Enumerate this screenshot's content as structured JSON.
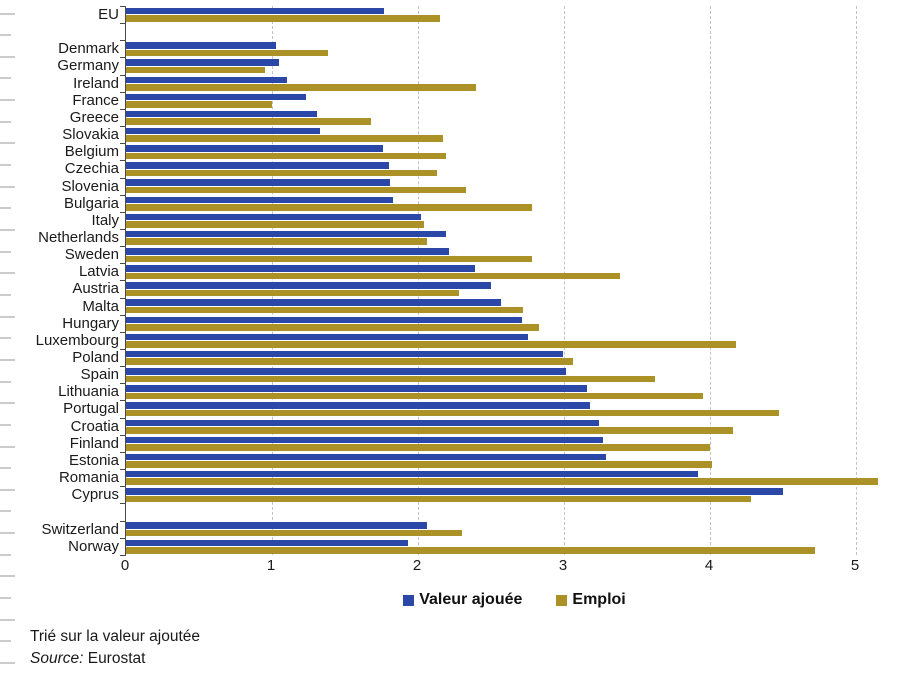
{
  "chart_data": {
    "type": "bar",
    "orientation": "horizontal",
    "title": "",
    "xlabel": "",
    "ylabel": "",
    "xlim": [
      0,
      5
    ],
    "x_ticks": [
      "0",
      "1",
      "2",
      "3",
      "4",
      "5"
    ],
    "grid": "vertical-dashed",
    "legend_position": "bottom-center",
    "series_names": [
      "Valeur ajouée",
      "Emploi"
    ],
    "colors": {
      "valeur_ajoutee": "#2B47A8",
      "emploi": "#AC9127"
    },
    "rows": [
      {
        "label": "EU",
        "valeur_ajoutee": 1.77,
        "emploi": 2.15
      },
      {
        "spacer": true
      },
      {
        "label": "Denmark",
        "valeur_ajoutee": 1.03,
        "emploi": 1.38
      },
      {
        "label": "Germany",
        "valeur_ajoutee": 1.05,
        "emploi": 0.95
      },
      {
        "label": "Ireland",
        "valeur_ajoutee": 1.1,
        "emploi": 2.4
      },
      {
        "label": "France",
        "valeur_ajoutee": 1.23,
        "emploi": 1.0
      },
      {
        "label": "Greece",
        "valeur_ajoutee": 1.31,
        "emploi": 1.68
      },
      {
        "label": "Slovakia",
        "valeur_ajoutee": 1.33,
        "emploi": 2.17
      },
      {
        "label": "Belgium",
        "valeur_ajoutee": 1.76,
        "emploi": 2.19
      },
      {
        "label": "Czechia",
        "valeur_ajoutee": 1.8,
        "emploi": 2.13
      },
      {
        "label": "Slovenia",
        "valeur_ajoutee": 1.81,
        "emploi": 2.33
      },
      {
        "label": "Bulgaria",
        "valeur_ajoutee": 1.83,
        "emploi": 2.78
      },
      {
        "label": "Italy",
        "valeur_ajoutee": 2.02,
        "emploi": 2.04
      },
      {
        "label": "Netherlands",
        "valeur_ajoutee": 2.19,
        "emploi": 2.06
      },
      {
        "label": "Sweden",
        "valeur_ajoutee": 2.21,
        "emploi": 2.78
      },
      {
        "label": "Latvia",
        "valeur_ajoutee": 2.39,
        "emploi": 3.38
      },
      {
        "label": "Austria",
        "valeur_ajoutee": 2.5,
        "emploi": 2.28
      },
      {
        "label": "Malta",
        "valeur_ajoutee": 2.57,
        "emploi": 2.72
      },
      {
        "label": "Hungary",
        "valeur_ajoutee": 2.71,
        "emploi": 2.83
      },
      {
        "label": "Luxembourg",
        "valeur_ajoutee": 2.75,
        "emploi": 4.18
      },
      {
        "label": "Poland",
        "valeur_ajoutee": 2.99,
        "emploi": 3.06
      },
      {
        "label": "Spain",
        "valeur_ajoutee": 3.01,
        "emploi": 3.62
      },
      {
        "label": "Lithuania",
        "valeur_ajoutee": 3.16,
        "emploi": 3.95
      },
      {
        "label": "Portugal",
        "valeur_ajoutee": 3.18,
        "emploi": 4.47
      },
      {
        "label": "Croatia",
        "valeur_ajoutee": 3.24,
        "emploi": 4.16
      },
      {
        "label": "Finland",
        "valeur_ajoutee": 3.27,
        "emploi": 4.0
      },
      {
        "label": "Estonia",
        "valeur_ajoutee": 3.29,
        "emploi": 4.01
      },
      {
        "label": "Romania",
        "valeur_ajoutee": 3.92,
        "emploi": 5.15
      },
      {
        "label": "Cyprus",
        "valeur_ajoutee": 4.5,
        "emploi": 4.28
      },
      {
        "spacer": true
      },
      {
        "label": "Switzerland",
        "valeur_ajoutee": 2.06,
        "emploi": 2.3
      },
      {
        "label": "Norway",
        "valeur_ajoutee": 1.93,
        "emploi": 4.72
      }
    ],
    "footnote_sort": "Trié sur la valeur ajoutée",
    "source_label": "Source:",
    "source_value": " Eurostat"
  },
  "legend": {
    "items": [
      {
        "label": "Valeur ajouée",
        "color": "#2B47A8",
        "key": "valeur_ajoutee"
      },
      {
        "label": "Emploi",
        "color": "#AC9127",
        "key": "emploi"
      }
    ]
  }
}
